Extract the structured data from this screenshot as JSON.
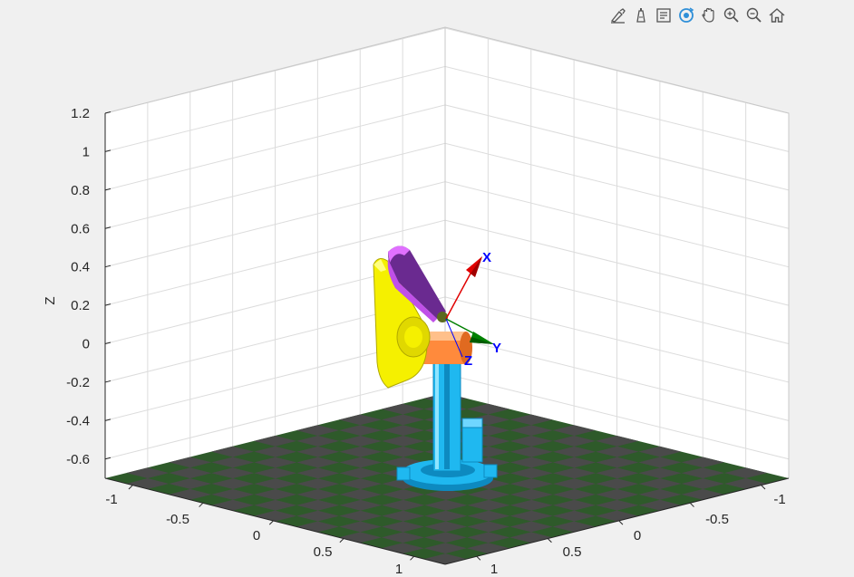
{
  "toolbar": {
    "icons": [
      "brush-edit-icon",
      "pin-icon",
      "datatip-icon",
      "rotate-3d-icon",
      "pan-hand-icon",
      "zoom-in-icon",
      "zoom-out-icon",
      "home-icon"
    ],
    "active": "rotate-3d-icon"
  },
  "axes": {
    "zlabel": "Z",
    "z_ticks": [
      "1.2",
      "1",
      "0.8",
      "0.6",
      "0.4",
      "0.2",
      "0",
      "-0.2",
      "-0.4",
      "-0.6"
    ],
    "x_ticks": [
      "-1",
      "-0.5",
      "0",
      "0.5",
      "1"
    ],
    "y_ticks": [
      "-1",
      "-0.5",
      "0",
      "0.5",
      "1"
    ],
    "grid": true
  },
  "frame_labels": {
    "x": "X",
    "y": "Y",
    "z": "Z"
  },
  "colors": {
    "background": "#f0f0f0",
    "axes_bg": "#ffffff",
    "grid": "#dcdcdc",
    "floor_dark": "#4a4a4a",
    "floor_green": "#2e5a2a",
    "base": "#1fb8f0",
    "shoulder": "#ff8a3c",
    "upper_arm": "#f5f000",
    "forearm": "#9b3fc0",
    "frame_x": "#e00000",
    "frame_y": "#008000",
    "frame_label": "#0000ff"
  }
}
